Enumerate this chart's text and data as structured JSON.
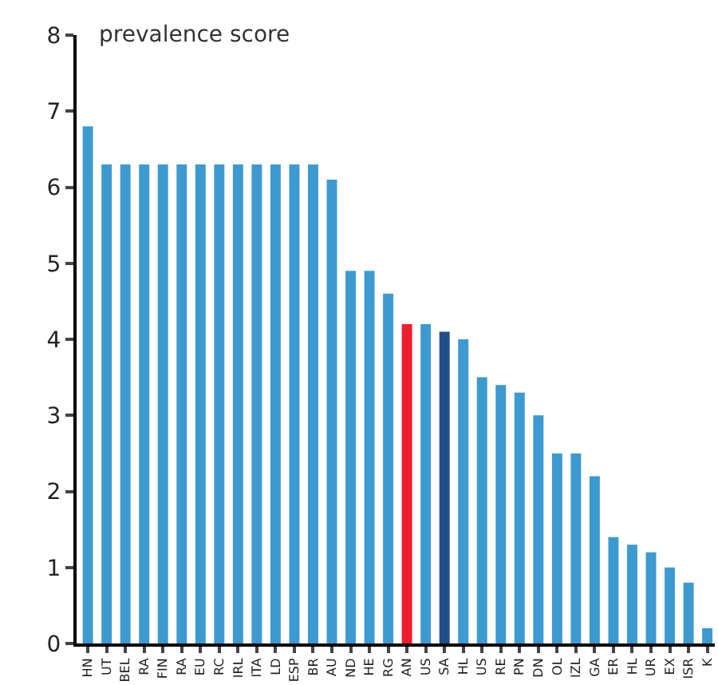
{
  "chart_data": {
    "type": "bar",
    "ylabel": "prevalence score",
    "categories": [
      "HN",
      "UT",
      "BEL",
      "RA",
      "FIN",
      "RA",
      "EU",
      "RC",
      "IRL",
      "ITA",
      "LD",
      "ESP",
      "BR",
      "AU",
      "ND",
      "HE",
      "RG",
      "AN",
      "US",
      "SA",
      "HL",
      "US",
      "RE",
      "PN",
      "DN",
      "OL",
      "IZL",
      "GA",
      "ER",
      "HL",
      "UR",
      "EX",
      "ISR",
      "K"
    ],
    "values": [
      6.8,
      6.3,
      6.3,
      6.3,
      6.3,
      6.3,
      6.3,
      6.3,
      6.3,
      6.3,
      6.3,
      6.3,
      6.3,
      6.1,
      4.9,
      4.9,
      4.6,
      4.2,
      4.2,
      4.1,
      4.0,
      3.5,
      3.4,
      3.3,
      3.0,
      2.5,
      2.5,
      2.2,
      1.4,
      1.3,
      1.2,
      1.0,
      0.8,
      0.2
    ],
    "colors": [
      "#3d9ad1",
      "#3d9ad1",
      "#3d9ad1",
      "#3d9ad1",
      "#3d9ad1",
      "#3d9ad1",
      "#3d9ad1",
      "#3d9ad1",
      "#3d9ad1",
      "#3d9ad1",
      "#3d9ad1",
      "#3d9ad1",
      "#3d9ad1",
      "#3d9ad1",
      "#3d9ad1",
      "#3d9ad1",
      "#3d9ad1",
      "#ee1c2e",
      "#3d9ad1",
      "#1f4e89",
      "#3d9ad1",
      "#3d9ad1",
      "#3d9ad1",
      "#3d9ad1",
      "#3d9ad1",
      "#3d9ad1",
      "#3d9ad1",
      "#3d9ad1",
      "#3d9ad1",
      "#3d9ad1",
      "#3d9ad1",
      "#3d9ad1",
      "#3d9ad1",
      "#3d9ad1"
    ],
    "ylim": [
      0,
      8
    ],
    "yticks": [
      0,
      1,
      2,
      3,
      4,
      5,
      6,
      7,
      8
    ]
  }
}
